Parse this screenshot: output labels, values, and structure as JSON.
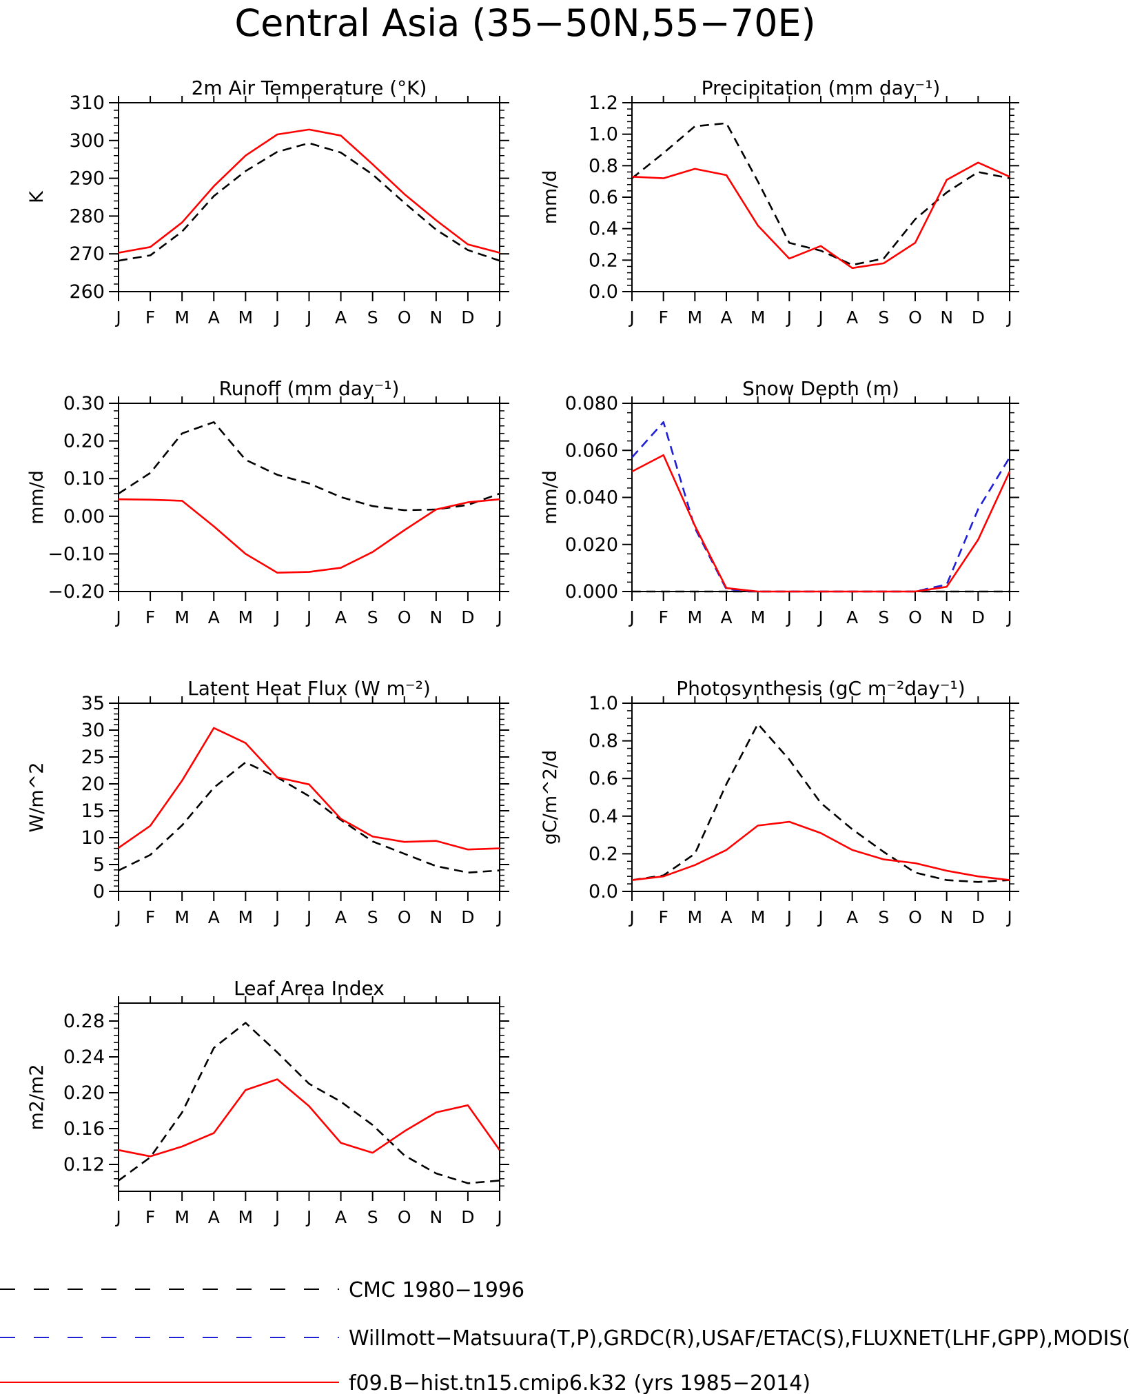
{
  "page_title": "Central Asia (35−50N,55−70E)",
  "months": [
    "J",
    "F",
    "M",
    "A",
    "M",
    "J",
    "J",
    "A",
    "S",
    "O",
    "N",
    "D",
    "J"
  ],
  "legend": [
    {
      "label": "CMC 1980−1996",
      "color": "#000000",
      "dash": true
    },
    {
      "label": "Willmott−Matsuura(T,P),GRDC(R),USAF/ETAC(S),FLUXNET(LHF,GPP),MODIS(",
      "color": "#1f1fd6",
      "dash": true
    },
    {
      "label": "f09.B−hist.tn15.cmip6.k32 (yrs 1985−2014)",
      "color": "#ff0000",
      "dash": false
    }
  ],
  "chart_data": [
    {
      "type": "line",
      "title": "2m Air Temperature (°K)",
      "ylabel": "K",
      "ylim": [
        260,
        310
      ],
      "yticks": [
        260,
        270,
        280,
        290,
        300,
        310
      ],
      "ytick_labels": [
        "260",
        "270",
        "280",
        "290",
        "300",
        "310"
      ],
      "x": [
        "J",
        "F",
        "M",
        "A",
        "M",
        "J",
        "J",
        "A",
        "S",
        "O",
        "N",
        "D",
        "J"
      ],
      "series": [
        {
          "name": "CMC 1980−1996",
          "color": "#000000",
          "dash": true,
          "values": [
            268.2,
            269.6,
            275.9,
            285.3,
            291.9,
            297.0,
            299.3,
            296.8,
            291.0,
            283.5,
            276.4,
            271.0,
            268.2
          ]
        },
        {
          "name": "f09.B−hist.tn15.cmip6.k32 (yrs 1985−2014)",
          "color": "#ff0000",
          "dash": false,
          "values": [
            270.3,
            271.8,
            278.3,
            287.9,
            296.0,
            301.6,
            302.9,
            301.3,
            293.7,
            285.8,
            278.9,
            272.5,
            270.3
          ]
        }
      ]
    },
    {
      "type": "line",
      "title": "Precipitation (mm day⁻¹)",
      "ylabel": "mm/d",
      "ylim": [
        0,
        1.2
      ],
      "yticks": [
        0,
        0.2,
        0.4,
        0.6,
        0.8,
        1.0,
        1.2
      ],
      "ytick_labels": [
        "0.0",
        "0.2",
        "0.4",
        "0.6",
        "0.8",
        "1.0",
        "1.2"
      ],
      "x": [
        "J",
        "F",
        "M",
        "A",
        "M",
        "J",
        "J",
        "A",
        "S",
        "O",
        "N",
        "D",
        "J"
      ],
      "series": [
        {
          "name": "CMC 1980−1996",
          "color": "#000000",
          "dash": true,
          "values": [
            0.72,
            0.88,
            1.05,
            1.07,
            0.7,
            0.31,
            0.26,
            0.17,
            0.21,
            0.46,
            0.63,
            0.76,
            0.72
          ]
        },
        {
          "name": "f09.B−hist.tn15.cmip6.k32 (yrs 1985−2014)",
          "color": "#ff0000",
          "dash": false,
          "values": [
            0.73,
            0.72,
            0.78,
            0.74,
            0.42,
            0.21,
            0.29,
            0.15,
            0.18,
            0.31,
            0.71,
            0.82,
            0.73
          ]
        }
      ]
    },
    {
      "type": "line",
      "title": "Runoff (mm day⁻¹)",
      "ylabel": "mm/d",
      "ylim": [
        -0.2,
        0.3
      ],
      "yticks": [
        -0.2,
        -0.1,
        0,
        0.1,
        0.2,
        0.3
      ],
      "ytick_labels": [
        "−0.20",
        "−0.10",
        "0.00",
        "0.10",
        "0.20",
        "0.30"
      ],
      "x": [
        "J",
        "F",
        "M",
        "A",
        "M",
        "J",
        "J",
        "A",
        "S",
        "O",
        "N",
        "D",
        "J"
      ],
      "series": [
        {
          "name": "CMC 1980−1996",
          "color": "#000000",
          "dash": true,
          "values": [
            0.06,
            0.115,
            0.22,
            0.25,
            0.15,
            0.11,
            0.087,
            0.051,
            0.027,
            0.016,
            0.018,
            0.03,
            0.06
          ]
        },
        {
          "name": "f09.B−hist.tn15.cmip6.k32 (yrs 1985−2014)",
          "color": "#ff0000",
          "dash": false,
          "values": [
            0.045,
            0.044,
            0.041,
            -0.027,
            -0.1,
            -0.15,
            -0.148,
            -0.137,
            -0.095,
            -0.037,
            0.018,
            0.037,
            0.045
          ]
        }
      ]
    },
    {
      "type": "line",
      "title": "Snow Depth (m)",
      "ylabel": "mm/d",
      "ylim": [
        0,
        0.08
      ],
      "yticks": [
        0,
        0.02,
        0.04,
        0.06,
        0.08
      ],
      "ytick_labels": [
        "0.000",
        "0.020",
        "0.040",
        "0.060",
        "0.080"
      ],
      "x": [
        "J",
        "F",
        "M",
        "A",
        "M",
        "J",
        "J",
        "A",
        "S",
        "O",
        "N",
        "D",
        "J"
      ],
      "series": [
        {
          "name": "CMC 1980−1996",
          "color": "#000000",
          "dash": true,
          "values": [
            0,
            0,
            0,
            0,
            0,
            0,
            0,
            0,
            0,
            0,
            0,
            0,
            0
          ]
        },
        {
          "name": "Willmott−Matsuura(T,P),GRDC(R),USAF/ETAC(S),FLUXNET(LHF,GPP),MODIS(",
          "color": "#1f1fd6",
          "dash": true,
          "values": [
            0.057,
            0.072,
            0.027,
            0.001,
            0,
            0,
            0,
            0,
            0,
            0,
            0.003,
            0.035,
            0.057
          ]
        },
        {
          "name": "f09.B−hist.tn15.cmip6.k32 (yrs 1985−2014)",
          "color": "#ff0000",
          "dash": false,
          "values": [
            0.051,
            0.058,
            0.028,
            0.0015,
            0,
            0,
            0,
            0,
            0,
            0,
            0.002,
            0.022,
            0.051
          ]
        }
      ]
    },
    {
      "type": "line",
      "title": "Latent Heat Flux (W m⁻²)",
      "ylabel": "W/m^2",
      "ylim": [
        0,
        35
      ],
      "yticks": [
        0,
        5,
        10,
        15,
        20,
        25,
        30,
        35
      ],
      "ytick_labels": [
        "0",
        "5",
        "10",
        "15",
        "20",
        "25",
        "30",
        "35"
      ],
      "x": [
        "J",
        "F",
        "M",
        "A",
        "M",
        "J",
        "J",
        "A",
        "S",
        "O",
        "N",
        "D",
        "J"
      ],
      "series": [
        {
          "name": "CMC 1980−1996",
          "color": "#000000",
          "dash": true,
          "values": [
            3.9,
            6.8,
            12.3,
            19.3,
            24.0,
            21.2,
            17.7,
            13.3,
            9.3,
            7.0,
            4.7,
            3.5,
            3.9
          ]
        },
        {
          "name": "f09.B−hist.tn15.cmip6.k32 (yrs 1985−2014)",
          "color": "#ff0000",
          "dash": false,
          "values": [
            8.1,
            12.2,
            20.6,
            30.4,
            27.6,
            21.2,
            19.9,
            13.5,
            10.2,
            9.2,
            9.4,
            7.8,
            8.0
          ]
        }
      ]
    },
    {
      "type": "line",
      "title": "Photosynthesis (gC m⁻²day⁻¹)",
      "ylabel": "gC/m^2/d",
      "ylim": [
        0,
        1
      ],
      "yticks": [
        0,
        0.2,
        0.4,
        0.6,
        0.8,
        1.0
      ],
      "ytick_labels": [
        "0.0",
        "0.2",
        "0.4",
        "0.6",
        "0.8",
        "1.0"
      ],
      "x": [
        "J",
        "F",
        "M",
        "A",
        "M",
        "J",
        "J",
        "A",
        "S",
        "O",
        "N",
        "D",
        "J"
      ],
      "series": [
        {
          "name": "CMC 1980−1996",
          "color": "#000000",
          "dash": true,
          "values": [
            0.06,
            0.085,
            0.2,
            0.57,
            0.89,
            0.7,
            0.47,
            0.33,
            0.21,
            0.1,
            0.06,
            0.05,
            0.06
          ]
        },
        {
          "name": "f09.B−hist.tn15.cmip6.k32 (yrs 1985−2014)",
          "color": "#ff0000",
          "dash": false,
          "values": [
            0.06,
            0.08,
            0.14,
            0.22,
            0.35,
            0.37,
            0.31,
            0.22,
            0.17,
            0.15,
            0.11,
            0.08,
            0.06
          ]
        }
      ]
    },
    {
      "type": "line",
      "title": "Leaf Area Index",
      "ylabel": "m2/m2",
      "ylim": [
        0.09,
        0.3
      ],
      "yticks": [
        0.12,
        0.16,
        0.2,
        0.24,
        0.28
      ],
      "ytick_labels": [
        "0.12",
        "0.16",
        "0.20",
        "0.24",
        "0.28"
      ],
      "x": [
        "J",
        "F",
        "M",
        "A",
        "M",
        "J",
        "J",
        "A",
        "S",
        "O",
        "N",
        "D",
        "J"
      ],
      "series": [
        {
          "name": "CMC 1980−1996",
          "color": "#000000",
          "dash": true,
          "values": [
            0.102,
            0.128,
            0.178,
            0.25,
            0.278,
            0.245,
            0.21,
            0.19,
            0.164,
            0.13,
            0.11,
            0.099,
            0.102
          ]
        },
        {
          "name": "f09.B−hist.tn15.cmip6.k32 (yrs 1985−2014)",
          "color": "#ff0000",
          "dash": false,
          "values": [
            0.136,
            0.129,
            0.14,
            0.155,
            0.203,
            0.215,
            0.185,
            0.144,
            0.133,
            0.157,
            0.178,
            0.186,
            0.136
          ]
        }
      ]
    }
  ]
}
